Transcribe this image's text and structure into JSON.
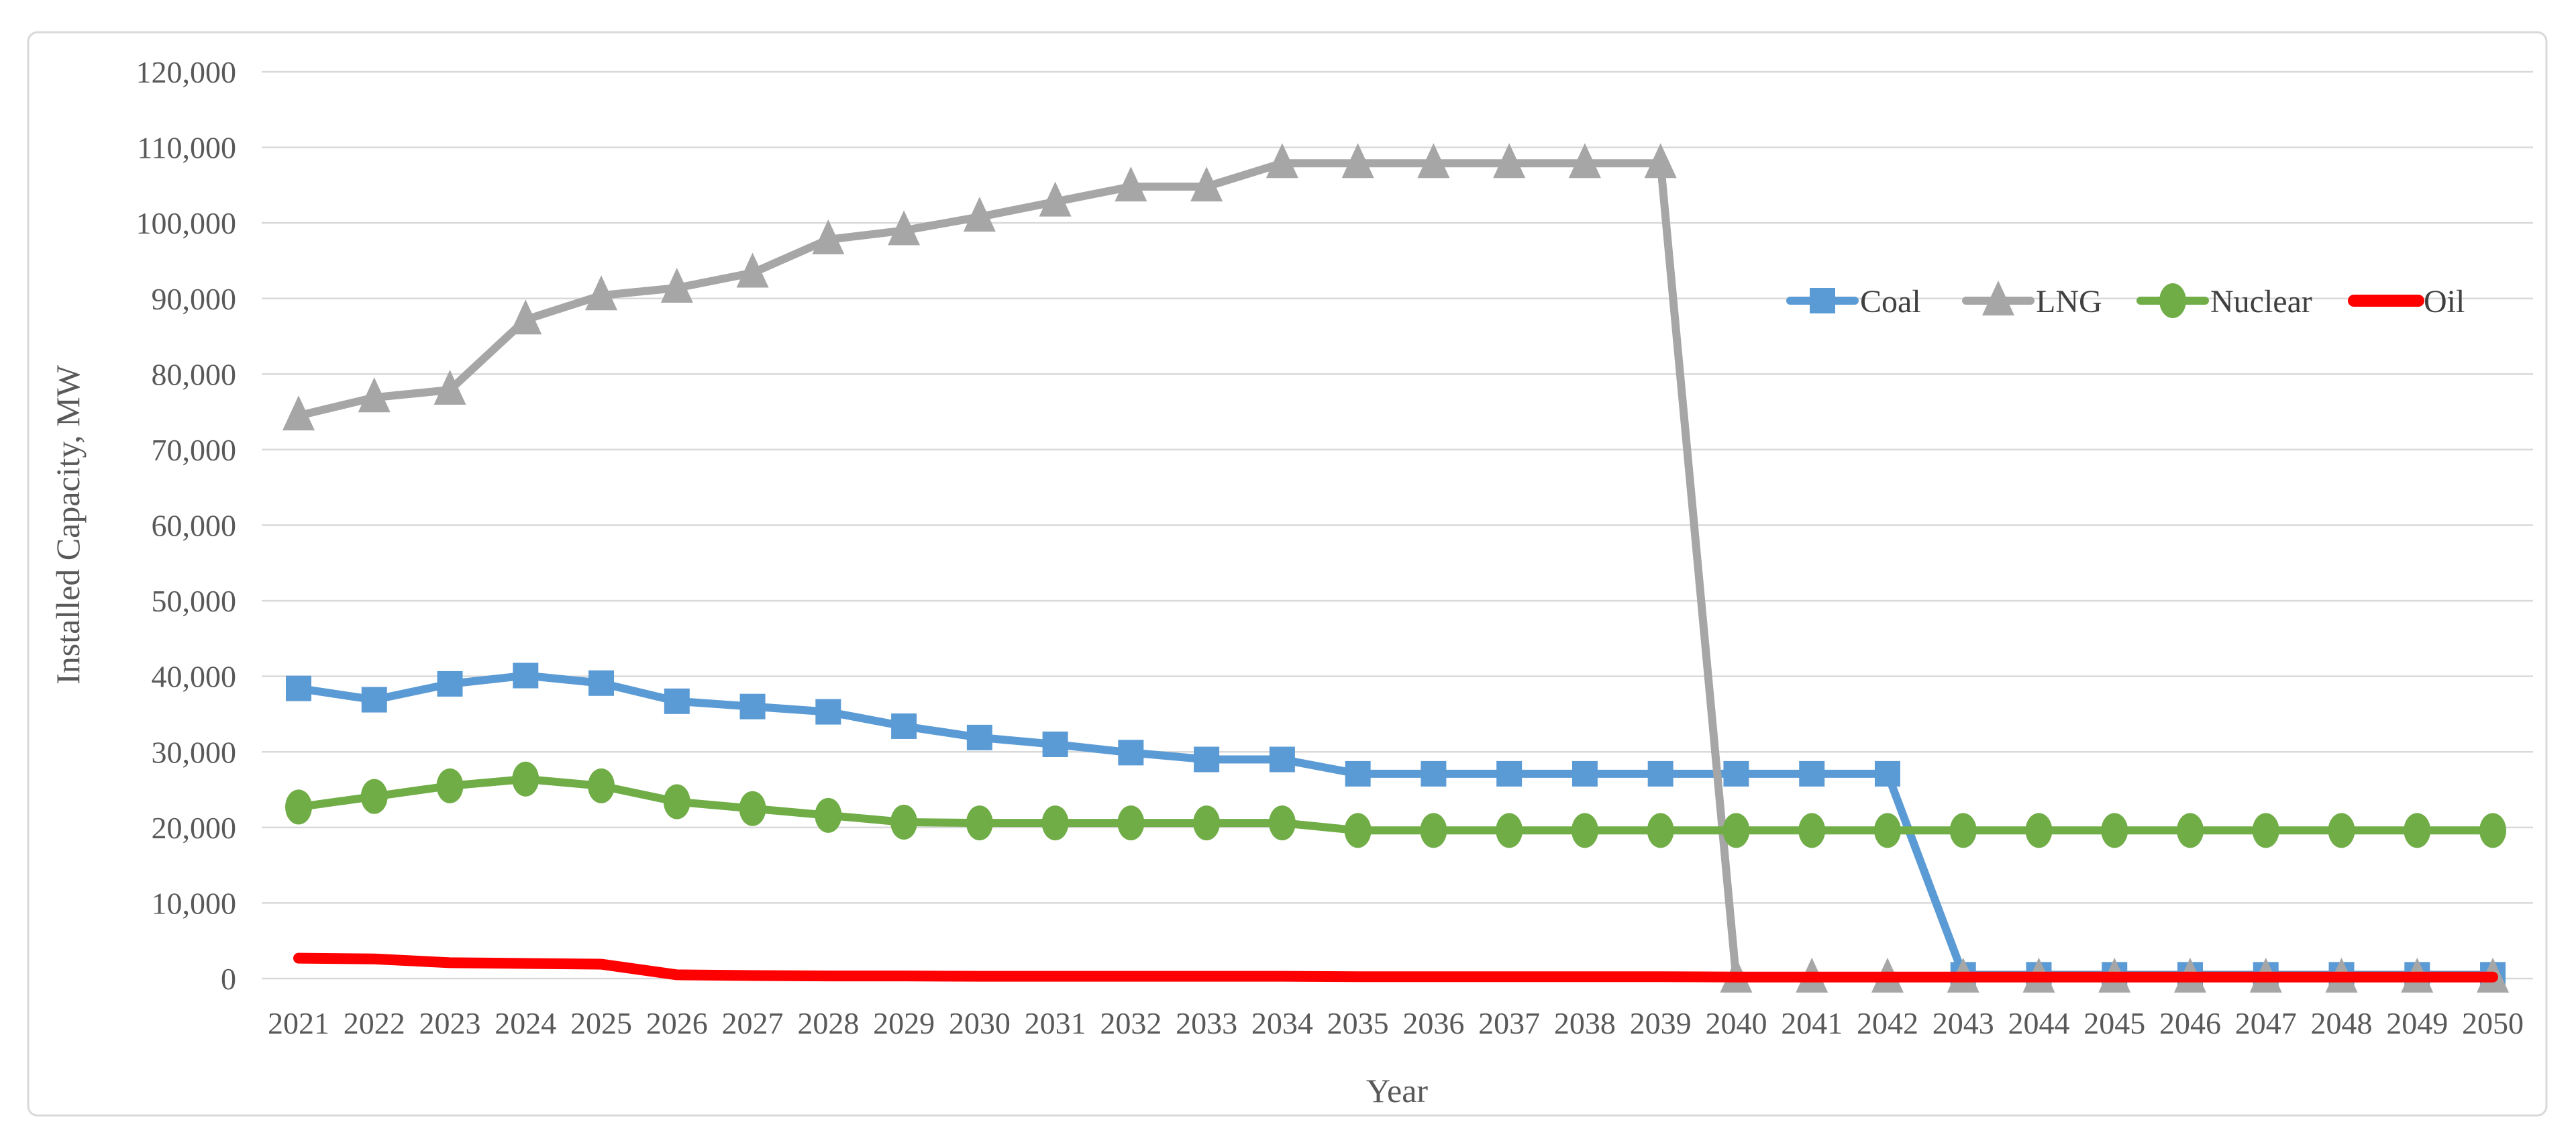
{
  "frame": {
    "background": "#FFFFFF",
    "border_color": "#D9D9D9"
  },
  "text_color": "#595959",
  "chart_data": {
    "type": "line",
    "title": "",
    "xlabel": "Year",
    "ylabel": "Installed Capacity, MW",
    "x": [
      2021,
      2022,
      2023,
      2024,
      2025,
      2026,
      2027,
      2028,
      2029,
      2030,
      2031,
      2032,
      2033,
      2034,
      2035,
      2036,
      2037,
      2038,
      2039,
      2040,
      2041,
      2042,
      2043,
      2044,
      2045,
      2046,
      2047,
      2048,
      2049,
      2050
    ],
    "ylim": [
      0,
      120000
    ],
    "y_tick_step": 10000,
    "y_ticks": [
      "0",
      "10,000",
      "20,000",
      "30,000",
      "40,000",
      "50,000",
      "60,000",
      "70,000",
      "80,000",
      "90,000",
      "100,000",
      "110,000",
      "120,000"
    ],
    "grid": "horizontal",
    "gridline_color": "#D9D9D9",
    "legend_position": "inside-top-right",
    "series": [
      {
        "name": "Coal",
        "color": "#5B9BD5",
        "marker": "square",
        "values": [
          38400,
          36900,
          39000,
          40100,
          39100,
          36700,
          36000,
          35300,
          33400,
          31900,
          31000,
          29900,
          29000,
          29000,
          27100,
          27100,
          27100,
          27100,
          27100,
          27100,
          27100,
          27100,
          500,
          500,
          500,
          500,
          500,
          500,
          500,
          500
        ]
      },
      {
        "name": "LNG",
        "color": "#A6A6A6",
        "marker": "triangle",
        "values": [
          74500,
          76900,
          77900,
          87200,
          90400,
          91400,
          93400,
          97800,
          99000,
          100800,
          102800,
          104800,
          104800,
          107900,
          107900,
          107900,
          107900,
          107900,
          107900,
          100,
          100,
          100,
          100,
          100,
          100,
          100,
          100,
          100,
          100,
          100
        ]
      },
      {
        "name": "Nuclear",
        "color": "#70AD47",
        "marker": "circle",
        "values": [
          22700,
          24100,
          25500,
          26400,
          25500,
          23400,
          22500,
          21600,
          20700,
          20600,
          20600,
          20600,
          20600,
          20600,
          19600,
          19600,
          19600,
          19600,
          19600,
          19600,
          19600,
          19600,
          19600,
          19600,
          19600,
          19600,
          19600,
          19600,
          19600,
          19600
        ]
      },
      {
        "name": "Oil",
        "color": "#FF0000",
        "marker": "none",
        "values": [
          2700,
          2600,
          2100,
          2000,
          1900,
          500,
          400,
          350,
          350,
          300,
          300,
          300,
          300,
          300,
          250,
          250,
          250,
          250,
          250,
          200,
          200,
          200,
          200,
          200,
          200,
          200,
          200,
          200,
          200,
          200
        ]
      }
    ]
  }
}
